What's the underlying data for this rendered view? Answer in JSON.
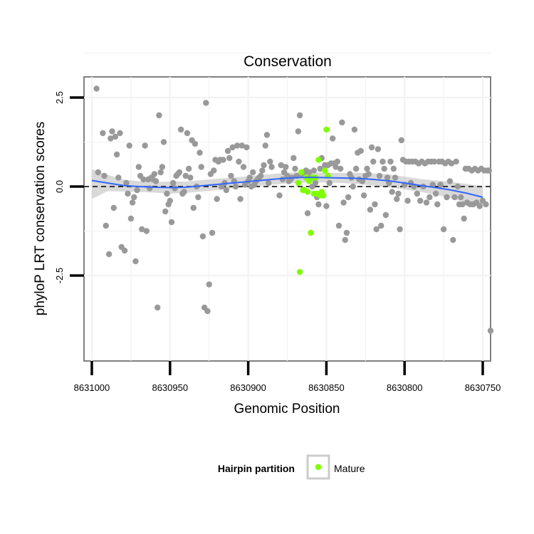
{
  "chart_data": {
    "type": "scatter",
    "title": "Conservation",
    "xlabel": "Genomic Position",
    "ylabel": "phyloP LRT conservation scores",
    "xlim": [
      8631005,
      8630745
    ],
    "ylim": [
      -4.9,
      3.08
    ],
    "x_ticks": [
      8631000,
      8630950,
      8630900,
      8630850,
      8630800,
      8630750
    ],
    "x_tick_labels": [
      "8631000",
      "8630950",
      "8630900",
      "8630850",
      "8630800",
      "8630750"
    ],
    "y_ticks": [
      2.5,
      0.0,
      -2.5
    ],
    "y_tick_labels": [
      "2.5",
      "0.0",
      "-2.5"
    ],
    "grid": true,
    "reference_line": {
      "y": 0,
      "style": "dashed",
      "color": "#000000"
    },
    "legend": {
      "title": "Hairpin partition",
      "position": "bottom",
      "entries": [
        {
          "label": "Mature",
          "color": "#7fff00"
        }
      ]
    },
    "colors": {
      "background_points": "#999999",
      "mature": "#7fff00",
      "smooth": "#3366ff",
      "ribbon": "#cccccc"
    },
    "series": [
      {
        "name": "Other",
        "color": "#999999",
        "points": [
          [
            8630997,
            2.75
          ],
          [
            8630996,
            0.4
          ],
          [
            8630993,
            1.5
          ],
          [
            8630992,
            0.3
          ],
          [
            8630991,
            -1.1
          ],
          [
            8630989,
            -1.9
          ],
          [
            8630988,
            1.35
          ],
          [
            8630987,
            1.55
          ],
          [
            8630986,
            -0.6
          ],
          [
            8630985,
            1.4
          ],
          [
            8630984,
            0.9
          ],
          [
            8630983,
            0.25
          ],
          [
            8630982,
            1.5
          ],
          [
            8630981,
            -1.7
          ],
          [
            8630979,
            -1.8
          ],
          [
            8630978,
            0.1
          ],
          [
            8630977,
            -0.2
          ],
          [
            8630976,
            1.15
          ],
          [
            8630975,
            -0.9
          ],
          [
            8630974,
            -0.45
          ],
          [
            8630973,
            -0.3
          ],
          [
            8630972,
            -2.1
          ],
          [
            8630971,
            -0.1
          ],
          [
            8630970,
            0.55
          ],
          [
            8630969,
            0.3
          ],
          [
            8630968,
            -1.2
          ],
          [
            8630967,
            0.2
          ],
          [
            8630966,
            1.15
          ],
          [
            8630965,
            -1.25
          ],
          [
            8630964,
            0.2
          ],
          [
            8630963,
            -0.05
          ],
          [
            8630962,
            0.25
          ],
          [
            8630961,
            0.2
          ],
          [
            8630960,
            0.35
          ],
          [
            8630959,
            0.15
          ],
          [
            8630958,
            -3.4
          ],
          [
            8630957,
            2.0
          ],
          [
            8630956,
            0.4
          ],
          [
            8630955,
            0.55
          ],
          [
            8630954,
            1.25
          ],
          [
            8630953,
            -0.7
          ],
          [
            8630952,
            -0.2
          ],
          [
            8630951,
            -0.5
          ],
          [
            8630950,
            -0.4
          ],
          [
            8630949,
            -1.0
          ],
          [
            8630948,
            0.1
          ],
          [
            8630947,
            -0.05
          ],
          [
            8630946,
            0.3
          ],
          [
            8630945,
            0.35
          ],
          [
            8630944,
            0.4
          ],
          [
            8630943,
            1.6
          ],
          [
            8630942,
            -0.2
          ],
          [
            8630941,
            -0.15
          ],
          [
            8630940,
            0.3
          ],
          [
            8630939,
            1.5
          ],
          [
            8630938,
            0.5
          ],
          [
            8630937,
            0.25
          ],
          [
            8630936,
            1.3
          ],
          [
            8630935,
            -0.6
          ],
          [
            8630934,
            1.2
          ],
          [
            8630933,
            0.0
          ],
          [
            8630932,
            -0.3
          ],
          [
            8630931,
            0.95
          ],
          [
            8630930,
            0.55
          ],
          [
            8630929,
            -1.4
          ],
          [
            8630928,
            -3.4
          ],
          [
            8630927,
            2.35
          ],
          [
            8630926,
            -3.5
          ],
          [
            8630925,
            -2.75
          ],
          [
            8630924,
            0.35
          ],
          [
            8630923,
            -1.3
          ],
          [
            8630922,
            0.45
          ],
          [
            8630921,
            0.75
          ],
          [
            8630920,
            -0.35
          ],
          [
            8630919,
            0.7
          ],
          [
            8630918,
            0.75
          ],
          [
            8630917,
            0.0
          ],
          [
            8630916,
            0.75
          ],
          [
            8630915,
            0.1
          ],
          [
            8630914,
            -0.1
          ],
          [
            8630913,
            1.0
          ],
          [
            8630912,
            0.8
          ],
          [
            8630911,
            0.3
          ],
          [
            8630910,
            1.1
          ],
          [
            8630909,
            0.15
          ],
          [
            8630908,
            0.0
          ],
          [
            8630907,
            1.15
          ],
          [
            8630906,
            0.7
          ],
          [
            8630905,
            -0.35
          ],
          [
            8630904,
            1.15
          ],
          [
            8630903,
            0.55
          ],
          [
            8630902,
            0.05
          ],
          [
            8630901,
            1.1
          ],
          [
            8630900,
            0.15
          ],
          [
            8630899,
            0.25
          ],
          [
            8630898,
            0.0
          ],
          [
            8630897,
            0.4
          ],
          [
            8630896,
            0.05
          ],
          [
            8630895,
            0.15
          ],
          [
            8630894,
            0.2
          ],
          [
            8630893,
            0.25
          ],
          [
            8630892,
            0.3
          ],
          [
            8630891,
            0.45
          ],
          [
            8630890,
            0.6
          ],
          [
            8630889,
            1.15
          ],
          [
            8630888,
            1.45
          ],
          [
            8630887,
            0.1
          ],
          [
            8630886,
            0.7
          ],
          [
            8630885,
            0.55
          ],
          [
            8630880,
            -0.25
          ],
          [
            8630879,
            0.6
          ],
          [
            8630878,
            0.2
          ],
          [
            8630877,
            0.4
          ],
          [
            8630876,
            0.55
          ],
          [
            8630875,
            0.3
          ],
          [
            8630874,
            0.15
          ],
          [
            8630873,
            0.2
          ],
          [
            8630872,
            0.25
          ],
          [
            8630871,
            0.8
          ],
          [
            8630870,
            0.5
          ],
          [
            8630869,
            0.3
          ],
          [
            8630868,
            1.55
          ],
          [
            8630867,
            2.0
          ],
          [
            8630866,
            0.35
          ],
          [
            8630865,
            -0.1
          ],
          [
            8630864,
            0.4
          ],
          [
            8630863,
            0.45
          ],
          [
            8630862,
            -0.75
          ],
          [
            8630861,
            0.4
          ],
          [
            8630860,
            0.25
          ],
          [
            8630859,
            0.0
          ],
          [
            8630858,
            0.45
          ],
          [
            8630857,
            0.1
          ],
          [
            8630856,
            -0.3
          ],
          [
            8630855,
            -0.5
          ],
          [
            8630854,
            0.5
          ],
          [
            8630853,
            0.8
          ],
          [
            8630852,
            -0.25
          ],
          [
            8630851,
            0.6
          ],
          [
            8630850,
            -0.55
          ],
          [
            8630849,
            0.6
          ],
          [
            8630848,
            0.1
          ],
          [
            8630847,
            0.65
          ],
          [
            8630846,
            1.35
          ],
          [
            8630845,
            0.65
          ],
          [
            8630844,
            0.55
          ],
          [
            8630843,
            0.7
          ],
          [
            8630842,
            -1.1
          ],
          [
            8630841,
            0.5
          ],
          [
            8630840,
            1.8
          ],
          [
            8630839,
            -0.45
          ],
          [
            8630838,
            -1.5
          ],
          [
            8630837,
            -1.3
          ],
          [
            8630836,
            -0.3
          ],
          [
            8630835,
            0.35
          ],
          [
            8630834,
            0.25
          ],
          [
            8630833,
            0.0
          ],
          [
            8630832,
            1.6
          ],
          [
            8630831,
            0.5
          ],
          [
            8630830,
            0.95
          ],
          [
            8630829,
            0.2
          ],
          [
            8630828,
            1.0
          ],
          [
            8630827,
            0.15
          ],
          [
            8630826,
            -0.25
          ],
          [
            8630825,
            0.3
          ],
          [
            8630824,
            0.5
          ],
          [
            8630823,
            0.35
          ],
          [
            8630822,
            -0.65
          ],
          [
            8630821,
            1.1
          ],
          [
            8630820,
            0.7
          ],
          [
            8630819,
            -0.5
          ],
          [
            8630818,
            -1.2
          ],
          [
            8630817,
            1.05
          ],
          [
            8630816,
            0.3
          ],
          [
            8630815,
            -1.1
          ],
          [
            8630814,
            0.7
          ],
          [
            8630813,
            0.5
          ],
          [
            8630812,
            -0.8
          ],
          [
            8630811,
            0.25
          ],
          [
            8630810,
            0.1
          ],
          [
            8630809,
            0.7
          ],
          [
            8630808,
            -0.15
          ],
          [
            8630807,
            0.5
          ],
          [
            8630806,
            0.25
          ],
          [
            8630805,
            -0.35
          ],
          [
            8630804,
            -0.2
          ],
          [
            8630803,
            -1.2
          ],
          [
            8630802,
            1.3
          ],
          [
            8630801,
            0.75
          ],
          [
            8630800,
            0.05
          ],
          [
            8630799,
            0.7
          ],
          [
            8630798,
            -0.4
          ],
          [
            8630797,
            0.7
          ],
          [
            8630796,
            0.1
          ],
          [
            8630795,
            0.7
          ],
          [
            8630794,
            0.0
          ],
          [
            8630793,
            0.7
          ],
          [
            8630792,
            -0.2
          ],
          [
            8630791,
            0.65
          ],
          [
            8630790,
            -0.4
          ],
          [
            8630789,
            0.7
          ],
          [
            8630788,
            0.0
          ],
          [
            8630787,
            0.65
          ],
          [
            8630786,
            -0.45
          ],
          [
            8630785,
            0.7
          ],
          [
            8630784,
            -0.3
          ],
          [
            8630783,
            0.7
          ],
          [
            8630782,
            0.05
          ],
          [
            8630781,
            0.7
          ],
          [
            8630780,
            -0.2
          ],
          [
            8630779,
            -0.5
          ],
          [
            8630778,
            0.7
          ],
          [
            8630777,
            0.05
          ],
          [
            8630776,
            0.7
          ],
          [
            8630775,
            -1.2
          ],
          [
            8630774,
            0.65
          ],
          [
            8630773,
            -0.3
          ],
          [
            8630772,
            0.7
          ],
          [
            8630771,
            0.15
          ],
          [
            8630770,
            0.65
          ],
          [
            8630769,
            -1.5
          ],
          [
            8630768,
            -0.3
          ],
          [
            8630767,
            0.7
          ],
          [
            8630766,
            0.0
          ],
          [
            8630765,
            -0.5
          ],
          [
            8630764,
            -0.3
          ],
          [
            8630763,
            -0.5
          ],
          [
            8630762,
            -0.9
          ],
          [
            8630761,
            0.5
          ],
          [
            8630760,
            -0.45
          ],
          [
            8630759,
            0.5
          ],
          [
            8630758,
            -0.5
          ],
          [
            8630757,
            0.45
          ],
          [
            8630756,
            -0.5
          ],
          [
            8630755,
            0.5
          ],
          [
            8630754,
            -0.45
          ],
          [
            8630753,
            0.45
          ],
          [
            8630752,
            -0.55
          ],
          [
            8630751,
            0.5
          ],
          [
            8630750,
            -0.4
          ],
          [
            8630749,
            0.45
          ],
          [
            8630748,
            -0.5
          ],
          [
            8630747,
            0.45
          ],
          [
            8630746,
            0.45
          ],
          [
            8630745,
            -4.05
          ]
        ]
      },
      {
        "name": "Mature",
        "color": "#7fff00",
        "points": [
          [
            8630868,
            0.1
          ],
          [
            8630867,
            -2.4
          ],
          [
            8630866,
            0.4
          ],
          [
            8630865,
            -0.1
          ],
          [
            8630864,
            -0.1
          ],
          [
            8630863,
            0.25
          ],
          [
            8630862,
            -0.15
          ],
          [
            8630861,
            0.15
          ],
          [
            8630860,
            -1.3
          ],
          [
            8630859,
            0.25
          ],
          [
            8630858,
            -0.2
          ],
          [
            8630857,
            0.25
          ],
          [
            8630856,
            -0.2
          ],
          [
            8630855,
            0.75
          ],
          [
            8630854,
            -0.25
          ],
          [
            8630853,
            -0.15
          ],
          [
            8630852,
            -0.25
          ],
          [
            8630851,
            0.45
          ],
          [
            8630850,
            1.6
          ],
          [
            8630849,
            0.3
          ]
        ]
      }
    ],
    "smooth": {
      "color": "#3366ff",
      "x": [
        8631000,
        8630990,
        8630980,
        8630970,
        8630960,
        8630950,
        8630940,
        8630930,
        8630920,
        8630910,
        8630900,
        8630890,
        8630880,
        8630870,
        8630860,
        8630850,
        8630840,
        8630830,
        8630820,
        8630810,
        8630800,
        8630790,
        8630780,
        8630770,
        8630760,
        8630750
      ],
      "y": [
        0.17,
        0.1,
        0.03,
        0.0,
        -0.02,
        -0.03,
        -0.02,
        0.02,
        0.06,
        0.1,
        0.14,
        0.18,
        0.22,
        0.25,
        0.26,
        0.25,
        0.24,
        0.23,
        0.2,
        0.16,
        0.1,
        0.03,
        -0.03,
        -0.1,
        -0.19,
        -0.3
      ],
      "ci_lower": [
        -0.35,
        -0.13,
        -0.14,
        -0.15,
        -0.17,
        -0.2,
        -0.18,
        -0.14,
        -0.1,
        -0.05,
        -0.01,
        0.03,
        0.07,
        0.1,
        0.12,
        0.11,
        0.1,
        0.07,
        0.03,
        -0.02,
        -0.08,
        -0.15,
        -0.23,
        -0.33,
        -0.45,
        -0.6
      ],
      "ci_upper": [
        0.49,
        0.33,
        0.2,
        0.15,
        0.13,
        0.14,
        0.14,
        0.18,
        0.22,
        0.25,
        0.29,
        0.33,
        0.37,
        0.4,
        0.4,
        0.39,
        0.38,
        0.39,
        0.37,
        0.34,
        0.28,
        0.21,
        0.17,
        0.13,
        0.07,
        0.0
      ]
    }
  }
}
